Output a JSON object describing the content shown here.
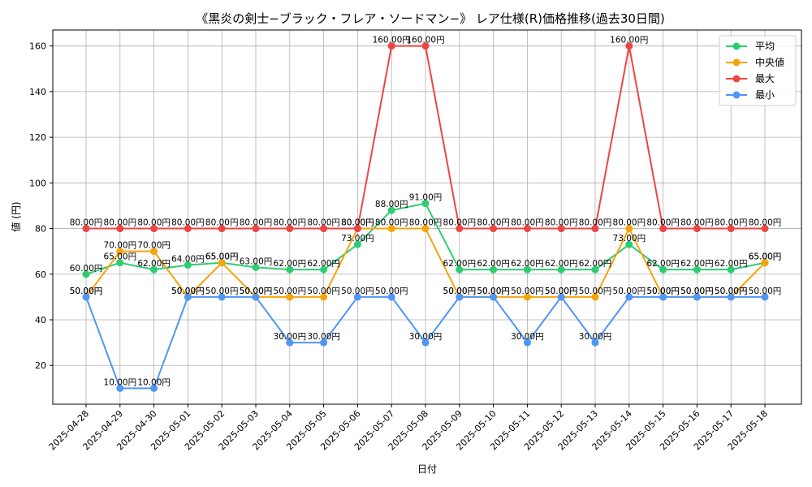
{
  "chart_data": {
    "type": "line",
    "title": "《黒炎の剣士−ブラック・フレア・ソードマン−》 レア仕様(R)価格推移(過去30日間)",
    "xlabel": "日付",
    "ylabel": "値 (円)",
    "ylim": [
      3,
      167
    ],
    "yticks": [
      20,
      40,
      60,
      80,
      100,
      120,
      140,
      160
    ],
    "grid": true,
    "legend_position": "top-right",
    "label_suffix": "円",
    "categories": [
      "2025-04-28",
      "2025-04-29",
      "2025-04-30",
      "2025-05-01",
      "2025-05-02",
      "2025-05-03",
      "2025-05-04",
      "2025-05-05",
      "2025-05-06",
      "2025-05-07",
      "2025-05-08",
      "2025-05-09",
      "2025-05-10",
      "2025-05-11",
      "2025-05-12",
      "2025-05-13",
      "2025-05-14",
      "2025-05-15",
      "2025-05-16",
      "2025-05-17",
      "2025-05-18"
    ],
    "series": [
      {
        "name": "平均",
        "color": "#2ecc71",
        "values": [
          60,
          65,
          62,
          64,
          65,
          63,
          62,
          62,
          73,
          88,
          91,
          62,
          62,
          62,
          62,
          62,
          73,
          62,
          62,
          62,
          65
        ]
      },
      {
        "name": "中央値",
        "color": "#f5a50b",
        "values": [
          50,
          70,
          70,
          50,
          65,
          50,
          50,
          50,
          80,
          80,
          80,
          50,
          50,
          50,
          50,
          50,
          80,
          50,
          50,
          50,
          65
        ]
      },
      {
        "name": "最大",
        "color": "#ef4444",
        "values": [
          80,
          80,
          80,
          80,
          80,
          80,
          80,
          80,
          80,
          160,
          160,
          80,
          80,
          80,
          80,
          80,
          160,
          80,
          80,
          80,
          80
        ]
      },
      {
        "name": "最小",
        "color": "#4f96f5",
        "values": [
          50,
          10,
          10,
          50,
          50,
          50,
          30,
          30,
          50,
          50,
          30,
          50,
          50,
          30,
          50,
          30,
          50,
          50,
          50,
          50,
          50
        ]
      }
    ]
  }
}
